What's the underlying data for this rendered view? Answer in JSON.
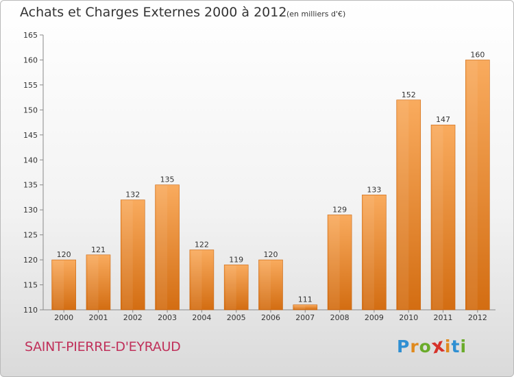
{
  "title": "Achats et Charges Externes 2000 à 2012",
  "subtitle": "(en milliers d'€)",
  "commune": "SAINT-PIERRE-D'EYRAUD",
  "logo": {
    "letters": [
      "P",
      "r",
      "o",
      "x",
      "i",
      "t",
      "i"
    ],
    "colors": [
      "#2f8fd2",
      "#e08a1e",
      "#6aab2a",
      "#d6322a",
      "#e08a1e",
      "#2f8fd2",
      "#6aab2a"
    ]
  },
  "colors": {
    "bar": "#f08a2a",
    "bar_light": "#f9ab5e",
    "bar_dark": "#d36d12"
  },
  "chart_data": {
    "type": "bar",
    "title": "Achats et Charges Externes 2000 à 2012",
    "xlabel": "",
    "ylabel": "",
    "categories": [
      "2000",
      "2001",
      "2002",
      "2003",
      "2004",
      "2005",
      "2006",
      "2007",
      "2008",
      "2009",
      "2010",
      "2011",
      "2012"
    ],
    "values": [
      120,
      121,
      132,
      135,
      122,
      119,
      120,
      111,
      129,
      133,
      152,
      147,
      160
    ],
    "ylim": [
      110,
      165
    ],
    "yticks": [
      110,
      115,
      120,
      125,
      130,
      135,
      140,
      145,
      150,
      155,
      160,
      165
    ],
    "grid": false,
    "legend": "none"
  }
}
